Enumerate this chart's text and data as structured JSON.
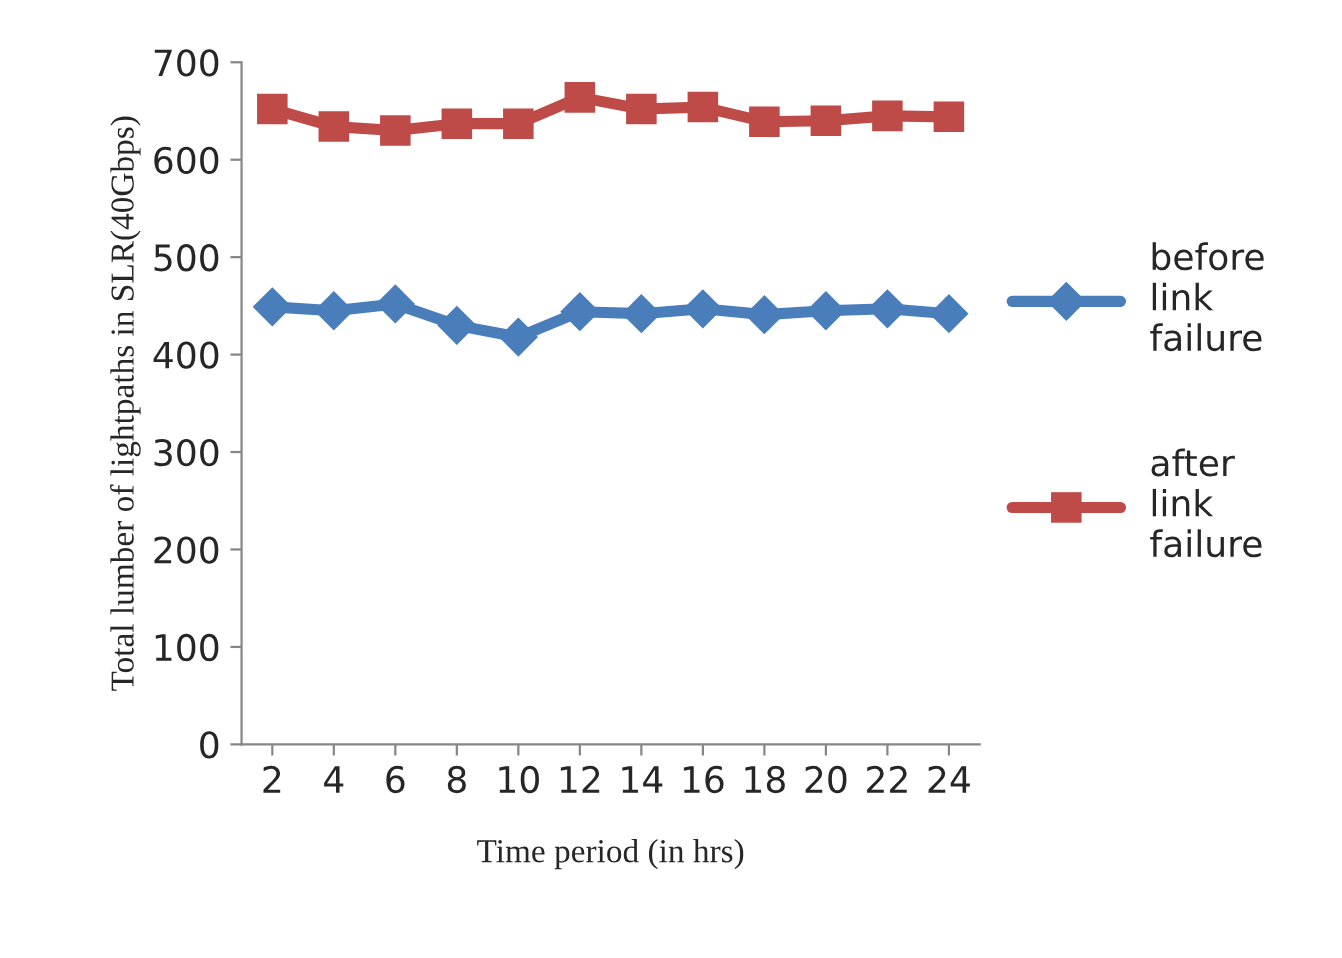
{
  "chart_data": {
    "type": "line",
    "xlabel": "Time period (in hrs)",
    "ylabel": "Total lumber of lightpaths in SLR(40Gbps)",
    "categories": [
      "2",
      "4",
      "6",
      "8",
      "10",
      "12",
      "14",
      "16",
      "18",
      "20",
      "22",
      "24"
    ],
    "series": [
      {
        "name": "before\nlink\nfailure",
        "color": "#4a7ebb",
        "marker": "diamond",
        "values": [
          449,
          445,
          452,
          430,
          418,
          444,
          442,
          447,
          441,
          445,
          447,
          442
        ]
      },
      {
        "name": "after\nlink\nfailure",
        "color": "#be4b48",
        "marker": "square",
        "values": [
          652,
          634,
          630,
          637,
          637,
          664,
          652,
          654,
          639,
          640,
          645,
          644
        ]
      }
    ],
    "ylim": [
      0,
      700
    ],
    "yticks": [
      0,
      100,
      200,
      300,
      400,
      500,
      600,
      700
    ],
    "grid": false,
    "legend": "right",
    "line_style": "solid"
  }
}
